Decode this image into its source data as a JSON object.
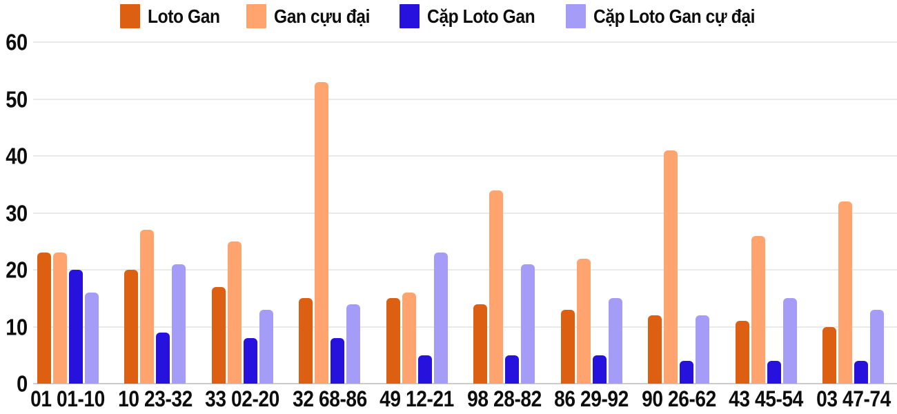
{
  "chart_data": {
    "type": "bar",
    "title": "",
    "categories": [
      "01 01-10",
      "10 23-32",
      "33 02-20",
      "32 68-86",
      "49 12-21",
      "98 28-82",
      "86 29-92",
      "90 26-62",
      "43 45-54",
      "03 47-74"
    ],
    "series": [
      {
        "name": "Loto Gan",
        "color": "#DD5F12",
        "values": [
          23,
          20,
          17,
          15,
          15,
          14,
          13,
          12,
          11,
          10
        ]
      },
      {
        "name": "Gan cựu đại",
        "color": "#FFA46E",
        "values": [
          23,
          27,
          25,
          53,
          16,
          34,
          22,
          41,
          26,
          32
        ]
      },
      {
        "name": "Cặp Loto Gan",
        "color": "#2612DC",
        "values": [
          20,
          9,
          8,
          8,
          5,
          5,
          5,
          4,
          4,
          4
        ]
      },
      {
        "name": "Cặp Loto Gan cự đại",
        "color": "#A49CF7",
        "values": [
          16,
          21,
          13,
          14,
          23,
          21,
          15,
          12,
          15,
          13
        ]
      }
    ],
    "y_axis": {
      "min": 0,
      "max": 60,
      "tick_step": 10,
      "ticks": [
        0,
        10,
        20,
        30,
        40,
        50,
        60
      ]
    },
    "legend_position": "top",
    "grid": true,
    "background_color": "#FFFFFF",
    "gridline_color": "#E9E9E9",
    "axis_text_color": "#0D0D0D"
  }
}
